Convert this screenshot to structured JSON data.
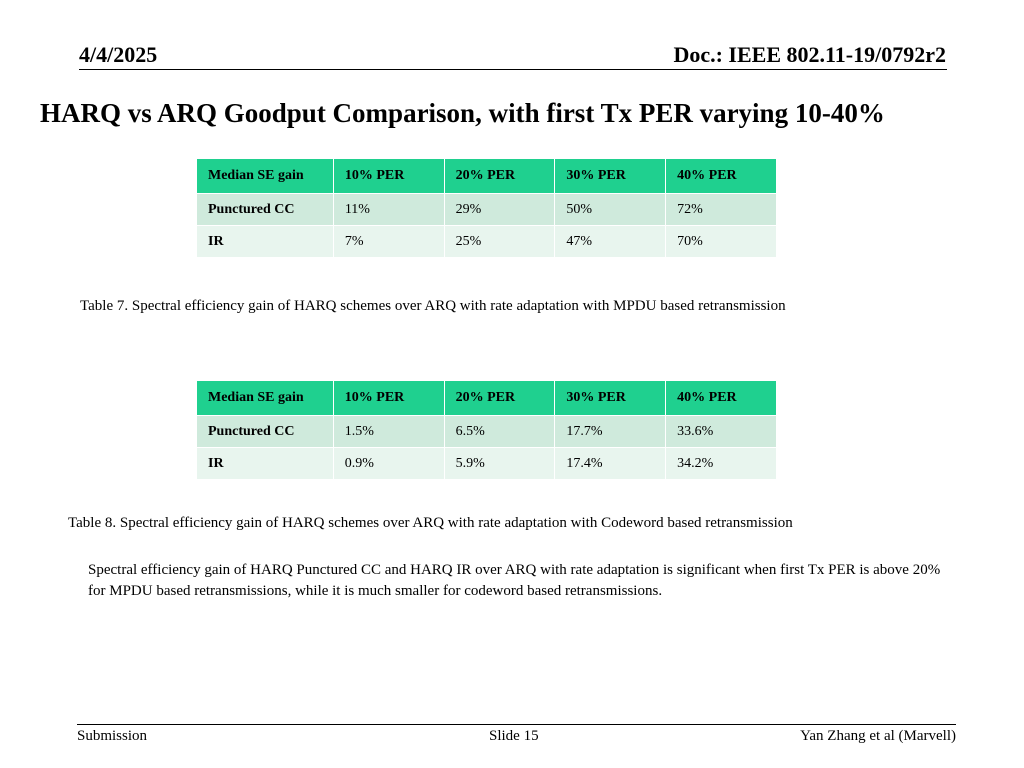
{
  "header": {
    "date": "4/4/2025",
    "doc": "Doc.: IEEE 802.11-19/0792r2"
  },
  "title": "HARQ vs ARQ Goodput Comparison, with first Tx PER varying 10-40%",
  "table7": {
    "headers": [
      "Median SE gain",
      "10% PER",
      "20% PER",
      "30% PER",
      "40% PER"
    ],
    "rows": [
      [
        "Punctured CC",
        "11%",
        "29%",
        "50%",
        "72%"
      ],
      [
        "IR",
        "7%",
        "25%",
        "47%",
        "70%"
      ]
    ],
    "caption": "Table 7. Spectral efficiency gain of HARQ schemes over ARQ with rate adaptation with MPDU based retransmission"
  },
  "table8": {
    "headers": [
      "Median SE gain",
      "10% PER",
      "20% PER",
      "30% PER",
      "40% PER"
    ],
    "rows": [
      [
        "Punctured CC",
        "1.5%",
        "6.5%",
        "17.7%",
        "33.6%"
      ],
      [
        "IR",
        "0.9%",
        "5.9%",
        "17.4%",
        "34.2%"
      ]
    ],
    "caption": "Table 8. Spectral efficiency gain of HARQ schemes over ARQ with rate adaptation with Codeword based retransmission"
  },
  "summary": "Spectral efficiency gain of HARQ Punctured CC and HARQ IR over ARQ with rate adaptation is significant when first Tx PER is above 20% for MPDU based retransmissions, while it is much smaller for codeword based retransmissions.",
  "footer": {
    "left": "Submission",
    "center": "Slide 15",
    "right": "Yan Zhang et al (Marvell)"
  },
  "colors": {
    "header_row": "#1fd08f",
    "row1": "#cfeadc",
    "row2": "#e8f5ee"
  }
}
